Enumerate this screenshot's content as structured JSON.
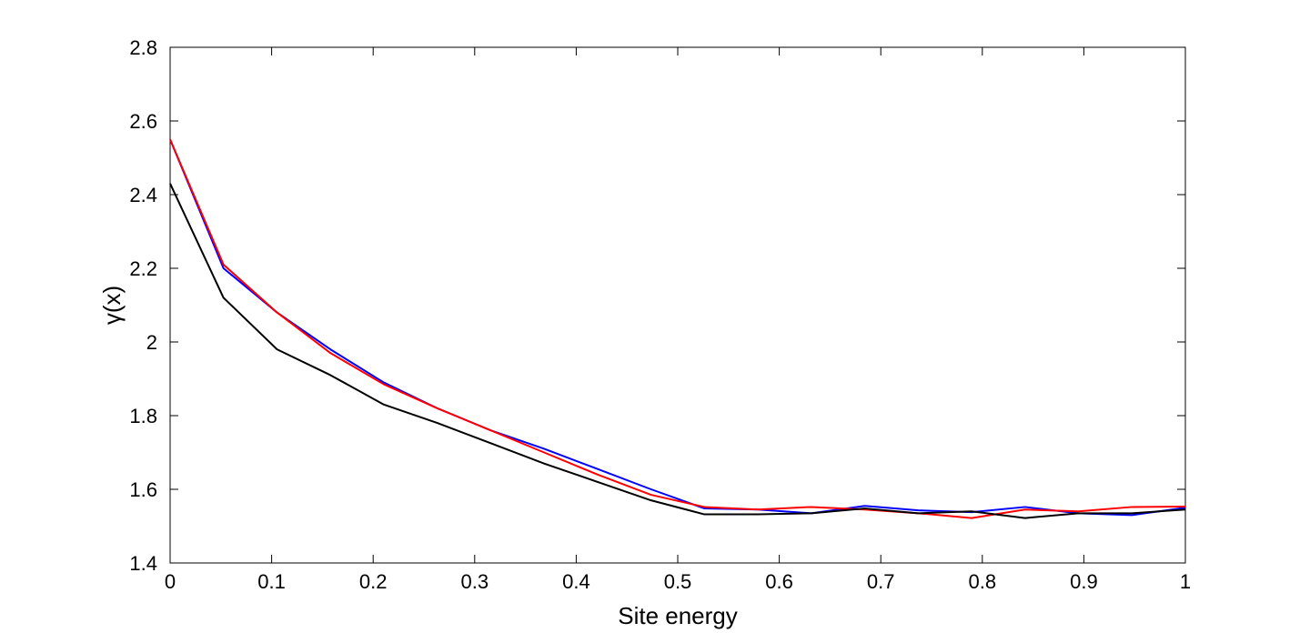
{
  "chart_data": {
    "type": "line",
    "title": "",
    "xlabel": "Site energy",
    "ylabel": "γ(x)",
    "xlim": [
      0,
      1
    ],
    "ylim": [
      1.4,
      2.8
    ],
    "xticks": [
      0,
      0.1,
      0.2,
      0.3,
      0.4,
      0.5,
      0.6,
      0.7,
      0.8,
      0.9,
      1
    ],
    "xtick_labels": [
      "0",
      "0.1",
      "0.2",
      "0.3",
      "0.4",
      "0.5",
      "0.6",
      "0.7",
      "0.8",
      "0.9",
      "1"
    ],
    "yticks": [
      1.4,
      1.6,
      1.8,
      2.0,
      2.2,
      2.4,
      2.6,
      2.8
    ],
    "ytick_labels": [
      "1.4",
      "1.6",
      "1.8",
      "2",
      "2.2",
      "2.4",
      "2.6",
      "2.8"
    ],
    "grid": false,
    "legend": "none",
    "x": [
      0,
      0.0526,
      0.1053,
      0.1579,
      0.2105,
      0.2632,
      0.3158,
      0.3684,
      0.4211,
      0.4737,
      0.5263,
      0.5789,
      0.6316,
      0.6842,
      0.7368,
      0.7895,
      0.8421,
      0.8947,
      0.9474,
      1.0
    ],
    "series": [
      {
        "color": "#0000ff",
        "values": [
          2.55,
          2.2,
          2.08,
          1.98,
          1.89,
          1.82,
          1.76,
          1.71,
          1.655,
          1.6,
          1.548,
          1.545,
          1.535,
          1.555,
          1.543,
          1.538,
          1.552,
          1.535,
          1.53,
          1.55
        ]
      },
      {
        "color": "#ff0000",
        "values": [
          2.55,
          2.21,
          2.08,
          1.97,
          1.885,
          1.82,
          1.76,
          1.7,
          1.64,
          1.585,
          1.552,
          1.545,
          1.552,
          1.545,
          1.535,
          1.522,
          1.545,
          1.54,
          1.552,
          1.553
        ]
      },
      {
        "color": "#000000",
        "values": [
          2.43,
          2.12,
          1.98,
          1.91,
          1.83,
          1.78,
          1.725,
          1.67,
          1.62,
          1.57,
          1.532,
          1.532,
          1.535,
          1.548,
          1.535,
          1.54,
          1.522,
          1.535,
          1.535,
          1.545
        ]
      }
    ]
  }
}
